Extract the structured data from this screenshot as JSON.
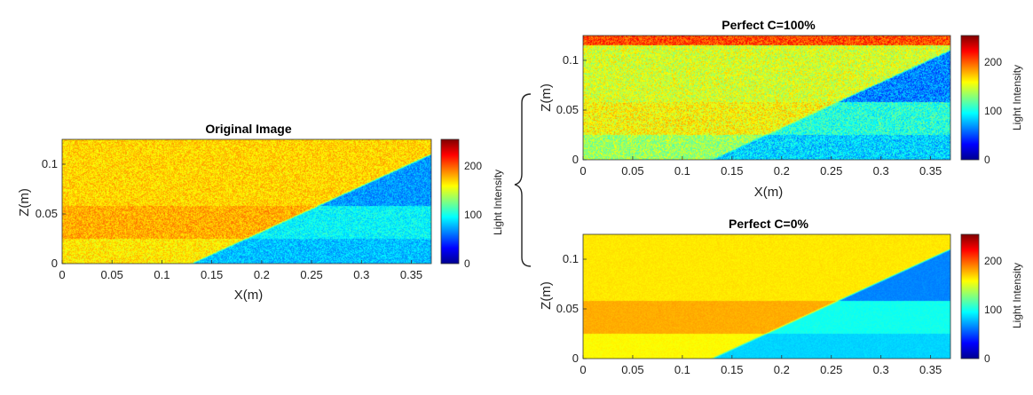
{
  "colormap": [
    "#00008f",
    "#0000ff",
    "#0080ff",
    "#00ffff",
    "#80ff80",
    "#ffff00",
    "#ff8000",
    "#ff0000",
    "#800000"
  ],
  "chart_data": [
    {
      "type": "heatmap",
      "title": "Original Image",
      "xlabel": "X(m)",
      "ylabel": "Z(m)",
      "xlim": [
        0,
        0.37
      ],
      "ylim": [
        0,
        0.125
      ],
      "xticks": [
        0,
        0.05,
        0.1,
        0.15,
        0.2,
        0.25,
        0.3,
        0.35
      ],
      "xtick_labels": [
        "0",
        "0.05",
        "0.1",
        "0.15",
        "0.2",
        "0.25",
        "0.3",
        "0.35"
      ],
      "yticks": [
        0,
        0.05,
        0.1
      ],
      "ytick_labels": [
        "0",
        "0.05",
        "0.1"
      ],
      "colorbar": {
        "label": "Light Intensity",
        "range": [
          0,
          255
        ],
        "ticks": [
          0,
          100,
          200
        ],
        "tick_labels": [
          "0",
          "100",
          "200"
        ]
      },
      "interface_line": {
        "x": [
          0.13,
          0.37
        ],
        "z": [
          0,
          0.11
        ]
      },
      "layers": [
        {
          "zmin": 0.0,
          "zmax": 0.025,
          "intensity_left": 165,
          "intensity_right": 80
        },
        {
          "zmin": 0.025,
          "zmax": 0.058,
          "intensity_left": 180,
          "intensity_right": 95
        },
        {
          "zmin": 0.058,
          "zmax": 0.125,
          "intensity_left": 170,
          "intensity_right": 70
        }
      ],
      "grain_noise": 0.55
    },
    {
      "type": "heatmap",
      "title": "Perfect C=100%",
      "xlabel": "X(m)",
      "ylabel": "Z(m)",
      "xlim": [
        0,
        0.37
      ],
      "ylim": [
        0,
        0.125
      ],
      "xticks": [
        0,
        0.05,
        0.1,
        0.15,
        0.2,
        0.25,
        0.3,
        0.35
      ],
      "xtick_labels": [
        "0",
        "0.05",
        "0.1",
        "0.15",
        "0.2",
        "0.25",
        "0.3",
        "0.35"
      ],
      "yticks": [
        0,
        0.05,
        0.1
      ],
      "ytick_labels": [
        "0",
        "0.05",
        "0.1"
      ],
      "colorbar": {
        "label": "Light Intensity",
        "range": [
          0,
          255
        ],
        "ticks": [
          0,
          100,
          200
        ],
        "tick_labels": [
          "0",
          "100",
          "200"
        ]
      },
      "interface_line": {
        "x": [
          0.13,
          0.37
        ],
        "z": [
          0,
          0.11
        ]
      },
      "layers": [
        {
          "zmin": 0.0,
          "zmax": 0.025,
          "intensity_left": 135,
          "intensity_right": 85
        },
        {
          "zmin": 0.025,
          "zmax": 0.058,
          "intensity_left": 160,
          "intensity_right": 105
        },
        {
          "zmin": 0.058,
          "zmax": 0.115,
          "intensity_left": 150,
          "intensity_right": 65
        },
        {
          "zmin": 0.115,
          "zmax": 0.125,
          "intensity_left": 205,
          "intensity_right": 205
        }
      ],
      "grain_noise": 0.8
    },
    {
      "type": "heatmap",
      "title": "Perfect C=0%",
      "xlabel": "",
      "ylabel": "Z(m)",
      "xlim": [
        0,
        0.37
      ],
      "ylim": [
        0,
        0.125
      ],
      "xticks": [
        0,
        0.05,
        0.1,
        0.15,
        0.2,
        0.25,
        0.3,
        0.35
      ],
      "xtick_labels": [
        "0",
        "0.05",
        "0.1",
        "0.15",
        "0.2",
        "0.25",
        "0.3",
        "0.35"
      ],
      "yticks": [
        0,
        0.05,
        0.1
      ],
      "ytick_labels": [
        "0",
        "0.05",
        "0.1"
      ],
      "colorbar": {
        "label": "Light Intensity",
        "range": [
          0,
          255
        ],
        "ticks": [
          0,
          100,
          200
        ],
        "tick_labels": [
          "0",
          "100",
          "200"
        ]
      },
      "interface_line": {
        "x": [
          0.13,
          0.37
        ],
        "z": [
          0,
          0.11
        ]
      },
      "layers": [
        {
          "zmin": 0.0,
          "zmax": 0.025,
          "intensity_left": 160,
          "intensity_right": 85
        },
        {
          "zmin": 0.025,
          "zmax": 0.058,
          "intensity_left": 180,
          "intensity_right": 100
        },
        {
          "zmin": 0.058,
          "zmax": 0.125,
          "intensity_left": 165,
          "intensity_right": 65
        }
      ],
      "grain_noise": 0.12
    }
  ]
}
